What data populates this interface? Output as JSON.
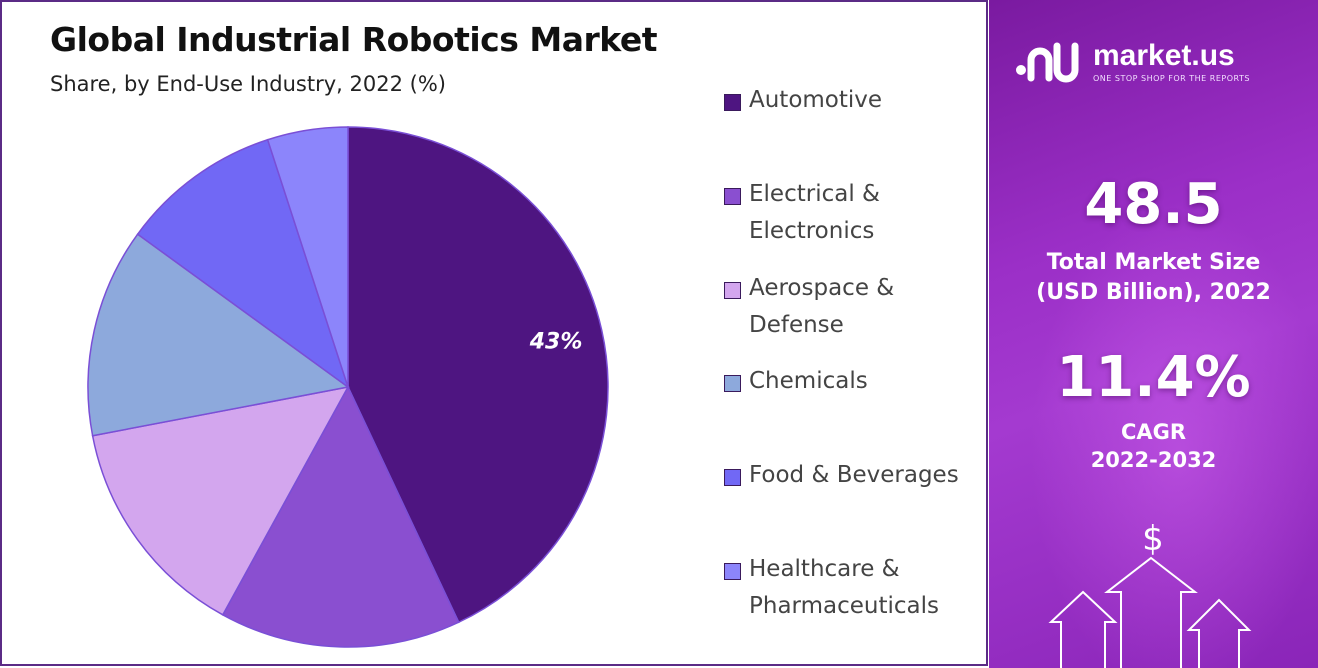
{
  "title": "Global Industrial Robotics Market",
  "subtitle": "Share, by End-Use Industry, 2022 (%)",
  "chart_data": {
    "type": "pie",
    "title": "Global Industrial Robotics Market",
    "subtitle": "Share, by End-Use Industry, 2022 (%)",
    "categories": [
      "Automotive",
      "Electrical & Electronics",
      "Aerospace & Defense",
      "Chemicals",
      "Food & Beverages",
      "Healthcare & Pharmaceuticals"
    ],
    "values": [
      43,
      15,
      14,
      13,
      10,
      5
    ],
    "colors": [
      "#4e1581",
      "#8a4fd0",
      "#d3a6ee",
      "#8da9dc",
      "#7168f5",
      "#8c85fb"
    ],
    "data_labels": [
      "43%",
      "",
      "",
      "",
      "",
      ""
    ],
    "legend_position": "right"
  },
  "legend": {
    "items": [
      {
        "line1": "Automotive",
        "line2": ""
      },
      {
        "line1": "Electrical &",
        "line2": "Electronics"
      },
      {
        "line1": "Aerospace &",
        "line2": "Defense"
      },
      {
        "line1": "Chemicals",
        "line2": ""
      },
      {
        "line1": "Food & Beverages",
        "line2": ""
      },
      {
        "line1": "Healthcare &",
        "line2": "Pharmaceuticals"
      }
    ]
  },
  "panel": {
    "brand_name": "market.us",
    "brand_tagline": "ONE STOP SHOP FOR THE REPORTS",
    "market_size_value": "48.5",
    "market_size_label_1": "Total Market Size",
    "market_size_label_2": "(USD Billion), 2022",
    "cagr_value": "11.4%",
    "cagr_label": "CAGR",
    "cagr_period": "2022-2032",
    "dollar_symbol": "$",
    "background_color": "#9b2fc7"
  }
}
